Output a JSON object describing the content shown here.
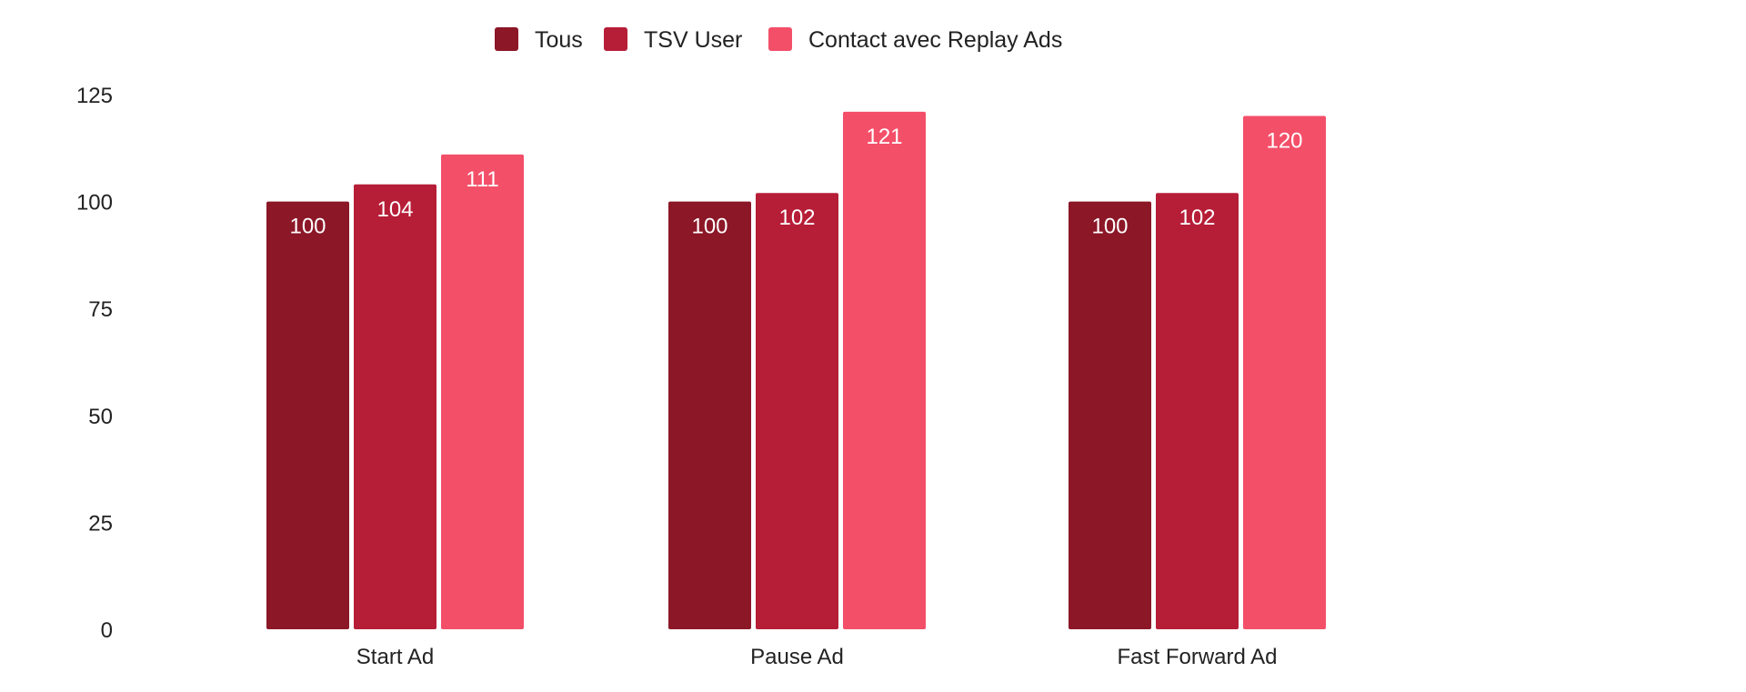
{
  "chart_data": {
    "type": "bar",
    "categories": [
      "Start Ad",
      "Pause Ad",
      "Fast Forward Ad"
    ],
    "series": [
      {
        "name": "Tous",
        "color": "#8b1727",
        "values": [
          100,
          100,
          100
        ]
      },
      {
        "name": "TSV User",
        "color": "#b61d37",
        "values": [
          104,
          102,
          102
        ]
      },
      {
        "name": "Contact avec Replay Ads",
        "color": "#f34f69",
        "values": [
          111,
          121,
          120
        ]
      }
    ],
    "ylim": [
      0,
      125
    ],
    "yticks": [
      0,
      25,
      50,
      75,
      100,
      125
    ],
    "grid": false,
    "legend": "top-center",
    "data_labels": true
  }
}
